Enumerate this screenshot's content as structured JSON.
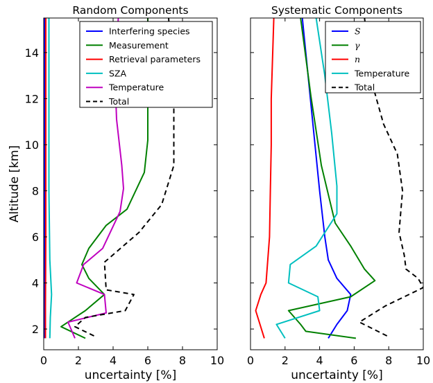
{
  "chart_data": [
    {
      "type": "line",
      "title": "Random Components",
      "xlabel": "uncertainty [%]",
      "ylabel": "Altitude [km]",
      "xlim": [
        0,
        10
      ],
      "ylim": [
        1.1,
        15.5
      ],
      "xticks": [
        "0",
        "2",
        "4",
        "6",
        "8",
        "10"
      ],
      "yticks": [
        "2",
        "4",
        "6",
        "8",
        "10",
        "12",
        "14"
      ],
      "legend_position": "top-right",
      "series": [
        {
          "name": "Interfering species",
          "color": "#0000ff",
          "dash": "solid",
          "x": [
            0.05,
            0.05,
            0.05,
            0.05
          ],
          "y": [
            1.6,
            3,
            8,
            15.5
          ]
        },
        {
          "name": "Measurement",
          "color": "#008000",
          "dash": "solid",
          "x": [
            2.4,
            1.0,
            2.4,
            3.5,
            2.6,
            2.2,
            2.6,
            3.6,
            4.8,
            5.8,
            6.0,
            6.0,
            6.0
          ],
          "y": [
            1.6,
            2.1,
            2.8,
            3.5,
            4.2,
            4.8,
            5.5,
            6.5,
            7.2,
            8.8,
            10.2,
            12.2,
            15.5
          ]
        },
        {
          "name": "Retrieval parameters",
          "color": "#ff0000",
          "dash": "solid",
          "x": [
            0.1,
            0.1,
            0.12,
            0.12,
            0.12
          ],
          "y": [
            1.6,
            3,
            6,
            10,
            15.5
          ]
        },
        {
          "name": "SZA",
          "color": "#00bfbf",
          "dash": "solid",
          "x": [
            0.35,
            0.38,
            0.45,
            0.35,
            0.3,
            0.3,
            0.3
          ],
          "y": [
            1.6,
            2.5,
            3.5,
            5,
            8,
            12,
            15.5
          ]
        },
        {
          "name": "Temperature",
          "color": "#bf00bf",
          "dash": "solid",
          "x": [
            1.8,
            1.4,
            3.6,
            3.5,
            1.9,
            2.3,
            3.4,
            4.4,
            4.6,
            4.5,
            4.2,
            4.1,
            4.3
          ],
          "y": [
            1.6,
            2.3,
            2.7,
            3.5,
            4.0,
            4.8,
            5.5,
            7.1,
            8.1,
            9.1,
            11.1,
            13.1,
            15.5
          ]
        },
        {
          "name": "Total",
          "color": "#000000",
          "dash": "dashed",
          "x": [
            2.9,
            1.8,
            2.4,
            4.7,
            5.2,
            3.6,
            3.5,
            5.5,
            6.8,
            7.5,
            7.5,
            7.5,
            7.2
          ],
          "y": [
            1.7,
            2.1,
            2.5,
            2.8,
            3.5,
            3.7,
            4.9,
            6.2,
            7.4,
            9.1,
            10.9,
            12.3,
            15.5
          ]
        }
      ]
    },
    {
      "type": "line",
      "title": "Systematic Components",
      "xlabel": "uncertainty [%]",
      "xlim": [
        0,
        10
      ],
      "ylim": [
        1.1,
        15.5
      ],
      "xticks": [
        "0",
        "2",
        "4",
        "6",
        "8",
        "10"
      ],
      "legend_position": "top-right",
      "series": [
        {
          "name": "S",
          "math": true,
          "color": "#0000ff",
          "dash": "solid",
          "x": [
            4.5,
            5.0,
            5.6,
            5.8,
            5.0,
            4.5,
            4.3,
            4.0,
            3.6,
            3.0
          ],
          "y": [
            1.6,
            2.2,
            2.8,
            3.5,
            4.2,
            5.0,
            6.0,
            8.0,
            11.0,
            15.5
          ]
        },
        {
          "name": "γ",
          "math": true,
          "color": "#008000",
          "dash": "solid",
          "x": [
            6.1,
            3.2,
            2.9,
            2.2,
            5.8,
            7.2,
            6.6,
            5.8,
            4.9,
            4.1,
            3.5,
            2.9
          ],
          "y": [
            1.6,
            1.9,
            2.2,
            2.8,
            3.4,
            4.1,
            4.6,
            5.6,
            6.6,
            9.1,
            12.1,
            15.5
          ]
        },
        {
          "name": "n",
          "math": true,
          "color": "#ff0000",
          "dash": "solid",
          "x": [
            0.8,
            0.3,
            0.6,
            0.9,
            1.0,
            1.1,
            1.15,
            1.2,
            1.2,
            1.35
          ],
          "y": [
            1.6,
            2.8,
            3.5,
            4.0,
            5.0,
            6.0,
            8.0,
            10.0,
            12.0,
            15.5
          ]
        },
        {
          "name": "Temperature",
          "color": "#00bfbf",
          "dash": "solid",
          "x": [
            2.0,
            1.5,
            4.0,
            3.9,
            2.2,
            2.3,
            3.8,
            5.0,
            5.0,
            4.7,
            4.3,
            3.8
          ],
          "y": [
            1.6,
            2.2,
            2.8,
            3.4,
            4.0,
            4.8,
            5.6,
            7.0,
            8.2,
            10.5,
            13.0,
            15.5
          ]
        },
        {
          "name": "Total",
          "color": "#000000",
          "dash": "dashed",
          "x": [
            7.9,
            6.3,
            7.8,
            10.0,
            9.7,
            9.0,
            8.9,
            8.6,
            8.8,
            8.5,
            7.7,
            7.1,
            6.6
          ],
          "y": [
            1.7,
            2.3,
            3.0,
            3.8,
            4.2,
            4.6,
            5.2,
            6.2,
            8.0,
            9.6,
            10.9,
            12.5,
            15.5
          ]
        }
      ]
    }
  ]
}
